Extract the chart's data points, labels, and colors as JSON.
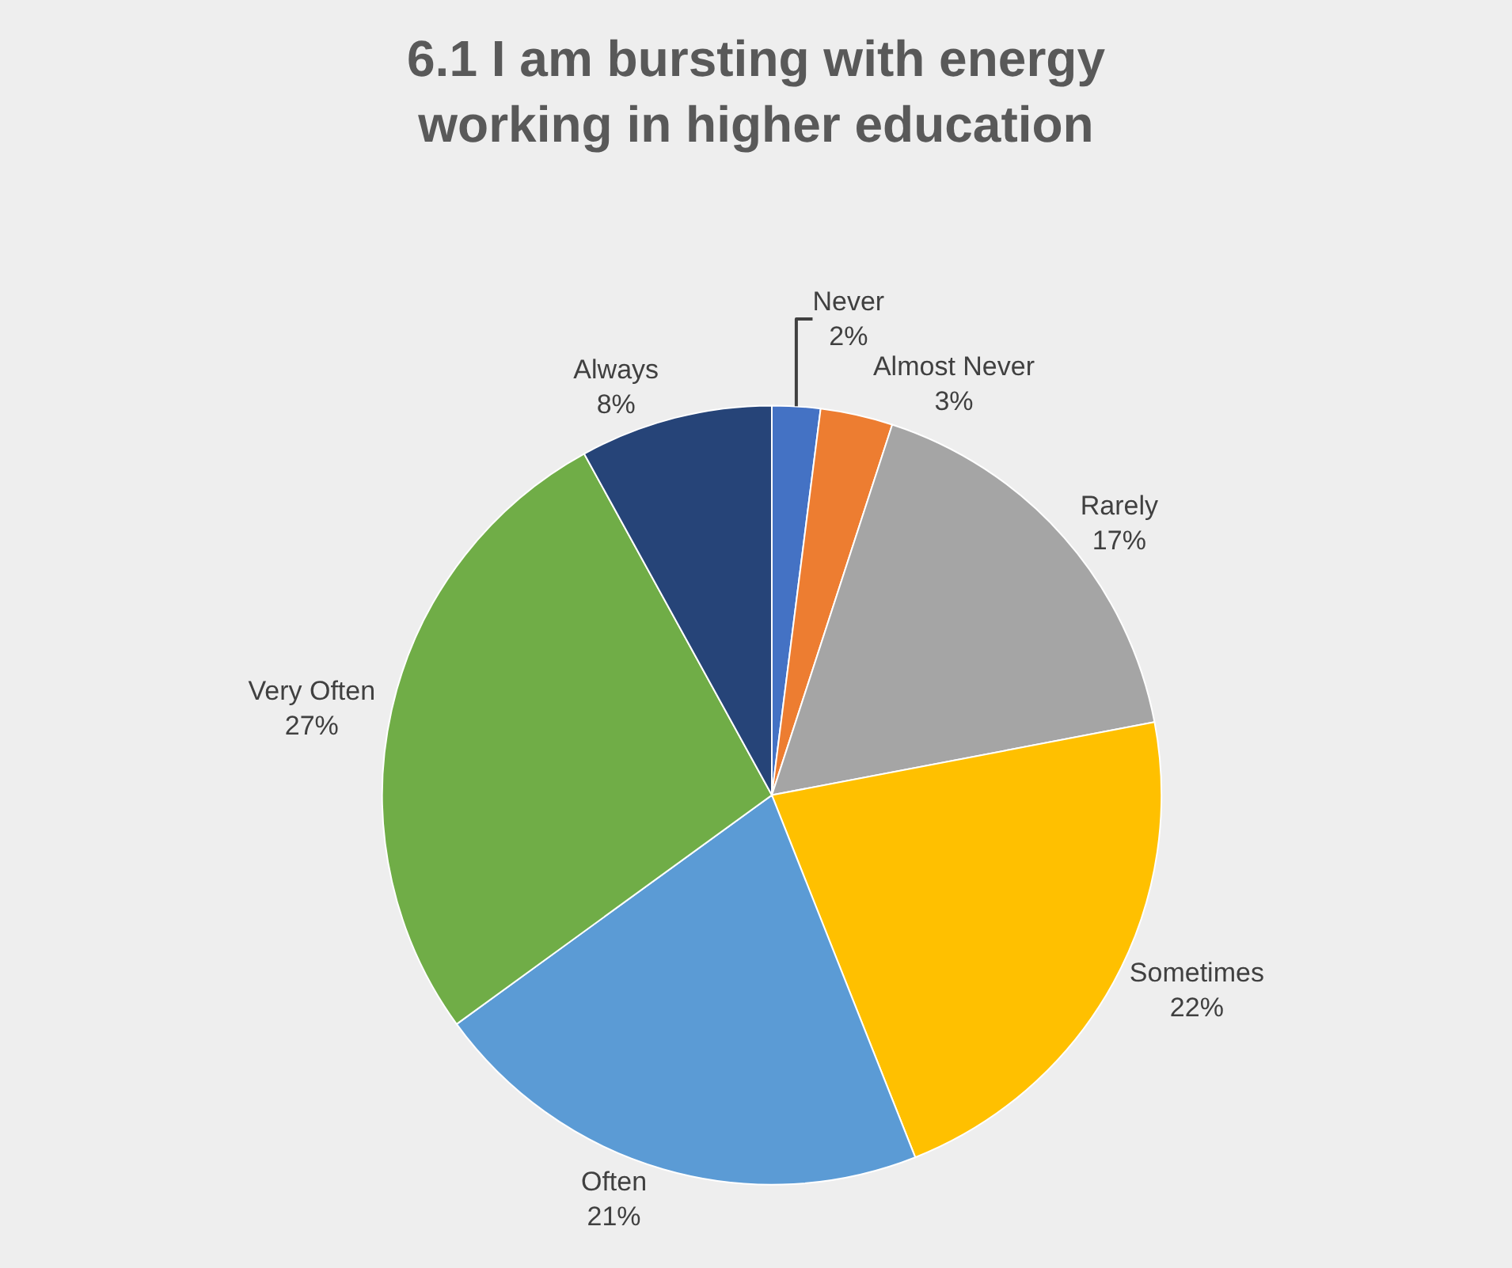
{
  "chart_data": {
    "type": "pie",
    "title": "6.1 I am bursting with energy working in higher education",
    "categories": [
      "Never",
      "Almost Never",
      "Rarely",
      "Sometimes",
      "Often",
      "Very Often",
      "Always"
    ],
    "values": [
      2,
      3,
      17,
      22,
      21,
      27,
      8
    ],
    "value_labels": [
      "2%",
      "3%",
      "17%",
      "22%",
      "21%",
      "27%",
      "8%"
    ],
    "colors": [
      "#4472c4",
      "#ed7d31",
      "#a5a5a5",
      "#ffc000",
      "#5b9bd5",
      "#70ad47",
      "#264478"
    ],
    "legend": false
  }
}
